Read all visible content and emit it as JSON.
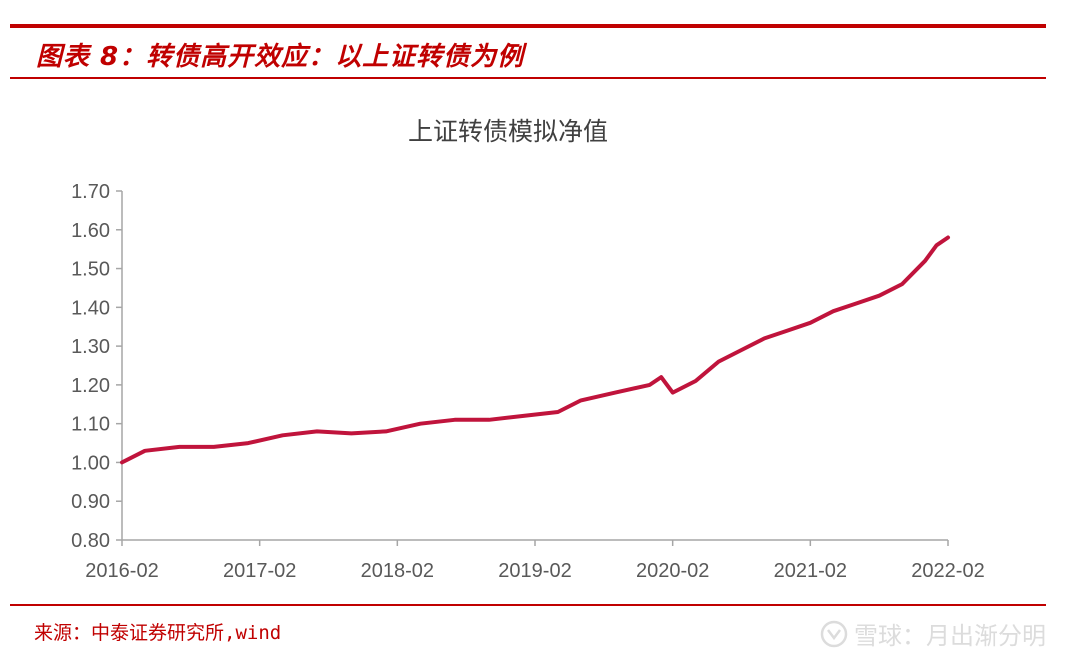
{
  "header": {
    "title": "图表 8：转债高开效应：以上证转债为例"
  },
  "footer": {
    "source": "来源：中泰证券研究所,wind",
    "watermark": "雪球：月出渐分明"
  },
  "colors": {
    "accent": "#c00000",
    "line": "#c0143c",
    "axis": "#a6a6a6",
    "text": "#595959"
  },
  "chart_data": {
    "type": "line",
    "title": "上证转债模拟净值",
    "xlabel": "",
    "ylabel": "",
    "x_tick_labels": [
      "2016-02",
      "2017-02",
      "2018-02",
      "2019-02",
      "2020-02",
      "2021-02",
      "2022-02"
    ],
    "y_tick_labels": [
      "0.80",
      "0.90",
      "1.00",
      "1.10",
      "1.20",
      "1.30",
      "1.40",
      "1.50",
      "1.60",
      "1.70"
    ],
    "ylim": [
      0.8,
      1.7
    ],
    "xlim": [
      "2016-02",
      "2022-02"
    ],
    "grid": false,
    "legend": "none",
    "series": [
      {
        "x": [
          "2016-02",
          "2016-04",
          "2016-07",
          "2016-10",
          "2017-01",
          "2017-04",
          "2017-07",
          "2017-10",
          "2018-01",
          "2018-04",
          "2018-07",
          "2018-10",
          "2019-01",
          "2019-04",
          "2019-06",
          "2019-09",
          "2019-12",
          "2020-01",
          "2020-02",
          "2020-04",
          "2020-06",
          "2020-08",
          "2020-10",
          "2020-12",
          "2021-02",
          "2021-04",
          "2021-06",
          "2021-08",
          "2021-10",
          "2021-12",
          "2022-01",
          "2022-02"
        ],
        "values": [
          1.0,
          1.03,
          1.04,
          1.04,
          1.05,
          1.07,
          1.08,
          1.075,
          1.08,
          1.1,
          1.11,
          1.11,
          1.12,
          1.13,
          1.16,
          1.18,
          1.2,
          1.22,
          1.18,
          1.21,
          1.26,
          1.29,
          1.32,
          1.34,
          1.36,
          1.39,
          1.41,
          1.43,
          1.46,
          1.52,
          1.56,
          1.58
        ]
      }
    ]
  }
}
